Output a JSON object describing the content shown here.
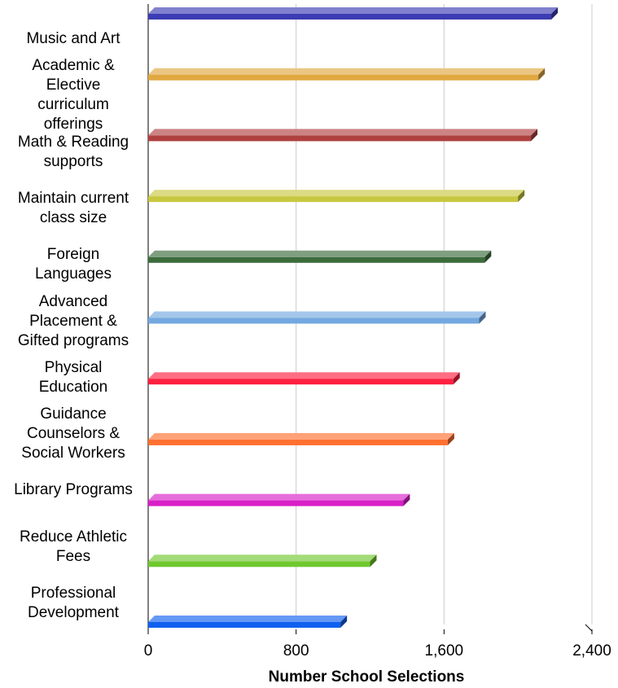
{
  "chart_data": {
    "type": "bar",
    "orientation": "horizontal",
    "x_label": "Number School Selections",
    "categories": [
      "Music and Art",
      "Academic &\nElective\ncurriculum\nofferings",
      "Math & Reading\nsupports",
      "Maintain current\nclass size",
      "Foreign\nLanguages",
      "Advanced\nPlacement &\nGifted programs",
      "Physical\nEducation",
      "Guidance\nCounselors &\nSocial Workers",
      "Library Programs",
      "Reduce Athletic\nFees",
      "Professional\nDevelopment"
    ],
    "values": [
      2180,
      2110,
      2070,
      2000,
      1820,
      1790,
      1650,
      1620,
      1380,
      1200,
      1040
    ],
    "colors": [
      "#3c3cb4",
      "#e0a840",
      "#b04040",
      "#c8c840",
      "#3c6c3c",
      "#74a8e0",
      "#ff2040",
      "#ff7030",
      "#d820c8",
      "#70c830",
      "#1060f0"
    ],
    "xlim": [
      0,
      2400
    ],
    "xticks": [
      0,
      800,
      {
        "value": 1600,
        "label": "1,600"
      },
      {
        "value": 2400,
        "label": "2,400"
      }
    ],
    "grid": true
  }
}
